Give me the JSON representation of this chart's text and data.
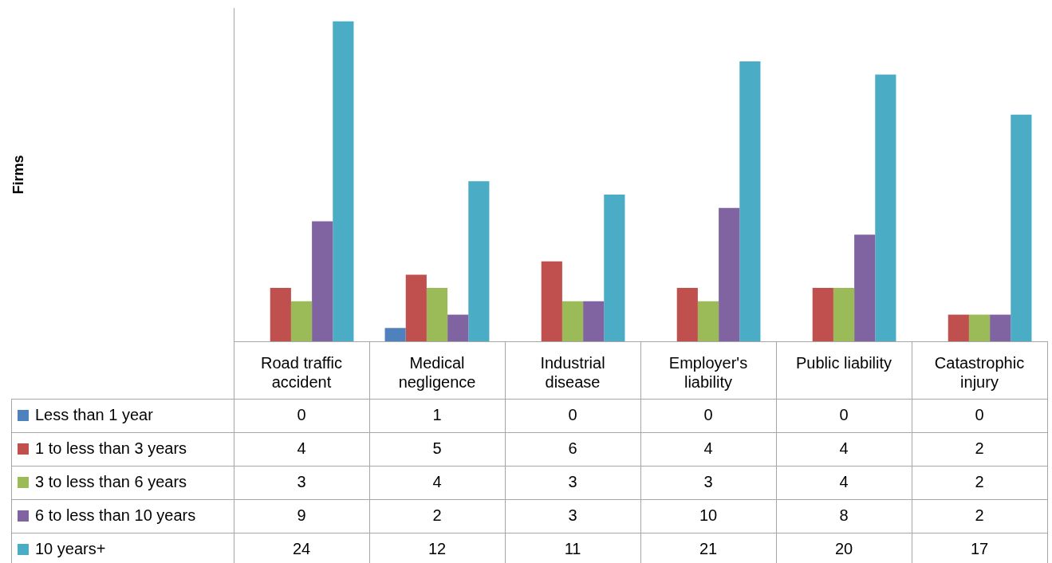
{
  "chart_data": {
    "type": "bar",
    "annotations": [
      "Firms"
    ],
    "data_labels": true,
    "legend": "bottom left",
    "categories": [
      "Road traffic accident",
      "Medical negligence",
      "Industrial disease",
      "Employer's liability",
      "Public liability",
      "Catastrophic injury"
    ],
    "series": [
      {
        "name": "Less than 1 year",
        "color": "#4f81bd",
        "values": [
          0,
          1,
          0,
          0,
          0,
          0
        ]
      },
      {
        "name": "1 to less than 3 years",
        "color": "#c0504d",
        "values": [
          4,
          5,
          6,
          4,
          4,
          2
        ]
      },
      {
        "name": "3 to less than 6 years",
        "color": "#9bbb59",
        "values": [
          3,
          4,
          3,
          3,
          4,
          2
        ]
      },
      {
        "name": "6 to less than 10 years",
        "color": "#8064a2",
        "values": [
          9,
          2,
          3,
          10,
          8,
          2
        ]
      },
      {
        "name": "10 years+",
        "color": "#4bacc6",
        "values": [
          24,
          12,
          11,
          21,
          20,
          17
        ]
      }
    ]
  }
}
